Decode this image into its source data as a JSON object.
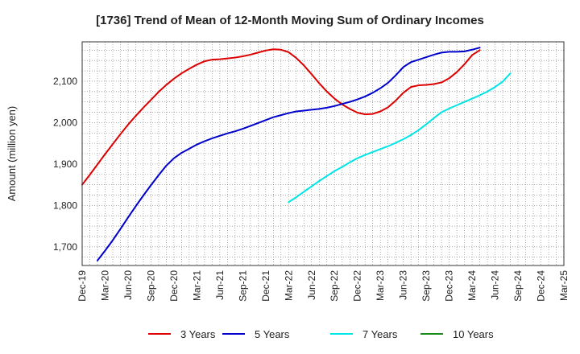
{
  "chart_data": {
    "type": "line",
    "title": "[1736]  Trend of Mean of 12-Month Moving Sum of Ordinary Incomes",
    "xlabel": "",
    "ylabel": "Amount (million yen)",
    "ylim": [
      1655,
      2195
    ],
    "yticks": [
      1700,
      1800,
      1900,
      2000,
      2100
    ],
    "ytick_labels": [
      "1,700",
      "1,800",
      "1,900",
      "2,000",
      "2,100"
    ],
    "x_start": "Dec-19",
    "x_tick_labels": [
      "Dec-19",
      "Mar-20",
      "Jun-20",
      "Sep-20",
      "Dec-20",
      "Mar-21",
      "Jun-21",
      "Sep-21",
      "Dec-21",
      "Mar-22",
      "Jun-22",
      "Sep-22",
      "Dec-22",
      "Mar-23",
      "Jun-23",
      "Sep-23",
      "Dec-23",
      "Mar-24",
      "Jun-24",
      "Sep-24",
      "Dec-24",
      "Mar-25"
    ],
    "grid": true,
    "legend_position": "bottom",
    "series": [
      {
        "name": "3 Years",
        "color": "#dd0000",
        "start_month": 0,
        "values": [
          1850,
          1874,
          1899,
          1924,
          1948,
          1972,
          1995,
          2016,
          2036,
          2055,
          2074,
          2091,
          2106,
          2119,
          2130,
          2140,
          2148,
          2152,
          2153,
          2155,
          2157,
          2160,
          2164,
          2169,
          2174,
          2177,
          2176,
          2170,
          2156,
          2138,
          2117,
          2095,
          2075,
          2058,
          2044,
          2033,
          2024,
          2020,
          2021,
          2027,
          2037,
          2053,
          2072,
          2086,
          2090,
          2091,
          2093,
          2097,
          2107,
          2122,
          2141,
          2163,
          2175
        ]
      },
      {
        "name": "5 Years",
        "color": "#0000cc",
        "start_month": 2,
        "values": [
          1667,
          1691,
          1716,
          1743,
          1771,
          1798,
          1824,
          1849,
          1873,
          1896,
          1914,
          1927,
          1937,
          1947,
          1955,
          1962,
          1968,
          1974,
          1979,
          1985,
          1992,
          1999,
          2006,
          2013,
          2018,
          2023,
          2027,
          2029,
          2031,
          2033,
          2036,
          2040,
          2045,
          2050,
          2056,
          2063,
          2072,
          2083,
          2096,
          2114,
          2134,
          2146,
          2152,
          2158,
          2164,
          2169,
          2171,
          2171,
          2172,
          2176,
          2181
        ]
      },
      {
        "name": "7 Years",
        "color": "#00e5e5",
        "start_month": 27,
        "values": [
          1808,
          1820,
          1833,
          1846,
          1859,
          1871,
          1883,
          1893,
          1904,
          1914,
          1922,
          1929,
          1936,
          1943,
          1951,
          1960,
          1970,
          1982,
          1996,
          2011,
          2025,
          2034,
          2042,
          2050,
          2058,
          2066,
          2075,
          2086,
          2099,
          2119
        ]
      },
      {
        "name": "10 Years",
        "color": "#1a8a1a",
        "start_month": 0,
        "values": []
      }
    ]
  }
}
